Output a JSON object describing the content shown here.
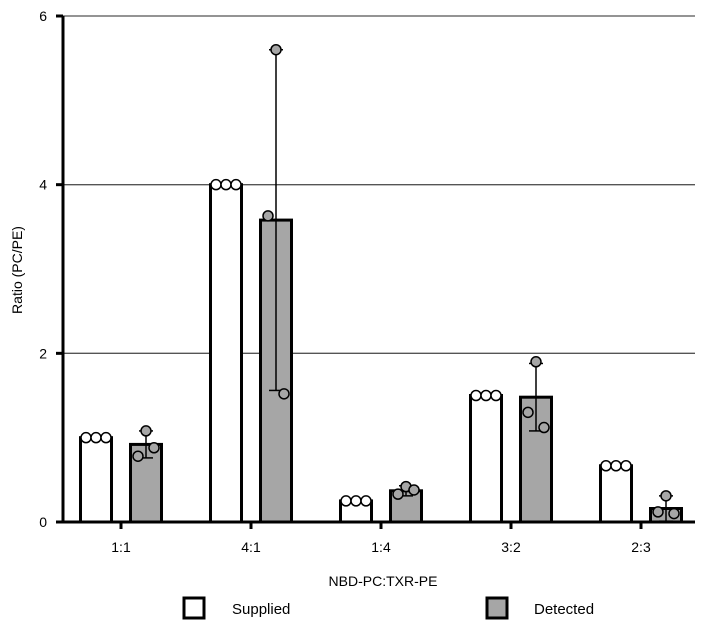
{
  "chart_data": {
    "type": "bar",
    "title": "",
    "xlabel": "NBD-PC:TXR-PE",
    "ylabel": "Ratio (PC/PE)",
    "ylim": [
      0,
      6
    ],
    "yticks": [
      0,
      2,
      4,
      6
    ],
    "grid": true,
    "legend_position": "bottom",
    "categories": [
      "1:1",
      "4:1",
      "1:4",
      "3:2",
      "2:3"
    ],
    "series": [
      {
        "name": "Supplied",
        "color": "#ffffff",
        "values": [
          1.0,
          4.0,
          0.25,
          1.5,
          0.667
        ],
        "error": [
          0,
          0,
          0,
          0,
          0
        ],
        "points": [
          [
            1.0,
            1.0,
            1.0
          ],
          [
            4.0,
            4.0,
            4.0
          ],
          [
            0.25,
            0.25,
            0.25
          ],
          [
            1.5,
            1.5,
            1.5
          ],
          [
            0.667,
            0.667,
            0.667
          ]
        ]
      },
      {
        "name": "Detected",
        "color": "#a6a6a6",
        "values": [
          0.92,
          3.58,
          0.37,
          1.48,
          0.16
        ],
        "error": [
          0.16,
          2.02,
          0.06,
          0.4,
          0.15
        ],
        "points": [
          [
            1.08,
            0.78,
            0.88
          ],
          [
            5.6,
            3.63,
            1.52
          ],
          [
            0.42,
            0.33,
            0.38
          ],
          [
            1.9,
            1.3,
            1.12
          ],
          [
            0.31,
            0.12,
            0.1
          ]
        ]
      }
    ]
  }
}
